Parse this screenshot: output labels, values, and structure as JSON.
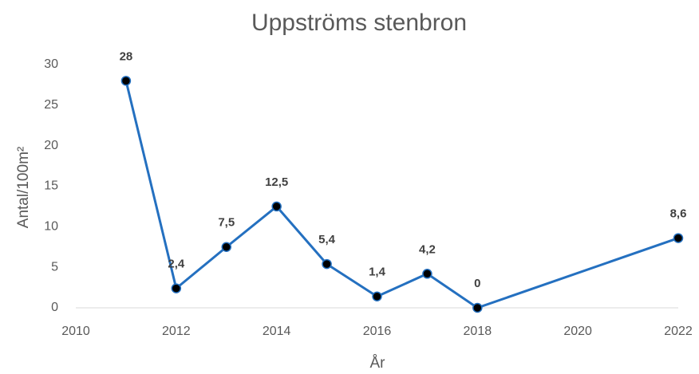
{
  "chart_data": {
    "type": "line",
    "title": "Uppströms stenbron",
    "xlabel": "År",
    "ylabel": "Antal/100m²",
    "x": [
      2011,
      2012,
      2013,
      2014,
      2015,
      2016,
      2017,
      2018,
      2022
    ],
    "series": [
      {
        "name": "Uppströms stenbron",
        "color": "#2470c0",
        "values": [
          28,
          2.4,
          7.5,
          12.5,
          5.4,
          1.4,
          4.2,
          0,
          8.6
        ],
        "value_labels": [
          "28",
          "2,4",
          "7,5",
          "12,5",
          "5,4",
          "1,4",
          "4,2",
          "0",
          "8,6"
        ]
      }
    ],
    "xlim": [
      2010,
      2022
    ],
    "xticks": [
      2010,
      2012,
      2014,
      2016,
      2018,
      2020,
      2022
    ],
    "ylim": [
      0,
      30
    ],
    "yticks": [
      0,
      5,
      10,
      15,
      20,
      25,
      30
    ],
    "grid": false,
    "marker_color": "#000000"
  }
}
